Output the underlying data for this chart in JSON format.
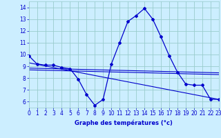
{
  "temp_x": [
    0,
    1,
    2,
    3,
    4,
    5,
    6,
    7,
    8,
    9,
    10,
    11,
    12,
    13,
    14,
    15,
    16,
    17,
    18,
    19,
    20,
    21,
    22,
    23
  ],
  "temp_y": [
    9.9,
    9.2,
    9.1,
    9.1,
    8.9,
    8.8,
    7.9,
    6.6,
    5.7,
    6.2,
    9.2,
    11.0,
    12.8,
    13.3,
    13.9,
    13.0,
    11.5,
    9.9,
    8.5,
    7.5,
    7.4,
    7.4,
    6.2,
    6.2
  ],
  "line1_x": [
    0,
    23
  ],
  "line1_y": [
    8.85,
    8.45
  ],
  "line2_x": [
    0,
    23
  ],
  "line2_y": [
    8.7,
    8.3
  ],
  "line3_x": [
    0,
    23
  ],
  "line3_y": [
    9.3,
    6.2
  ],
  "bg_color": "#cceeff",
  "grid_color": "#99cccc",
  "line_color": "#0000cc",
  "xlabel": "Graphe des températures (°c)",
  "xlim": [
    0,
    23
  ],
  "ylim": [
    5.5,
    14.5
  ],
  "yticks": [
    6,
    7,
    8,
    9,
    10,
    11,
    12,
    13,
    14
  ],
  "xtick_labels": [
    "0",
    "1",
    "2",
    "3",
    "4",
    "5",
    "6",
    "7",
    "8",
    "9",
    "10",
    "11",
    "12",
    "13",
    "14",
    "15",
    "16",
    "17",
    "18",
    "19",
    "20",
    "21",
    "22",
    "23"
  ],
  "xlabel_fontsize": 6.0,
  "tick_fontsize": 5.5,
  "xlabel_bold": true
}
